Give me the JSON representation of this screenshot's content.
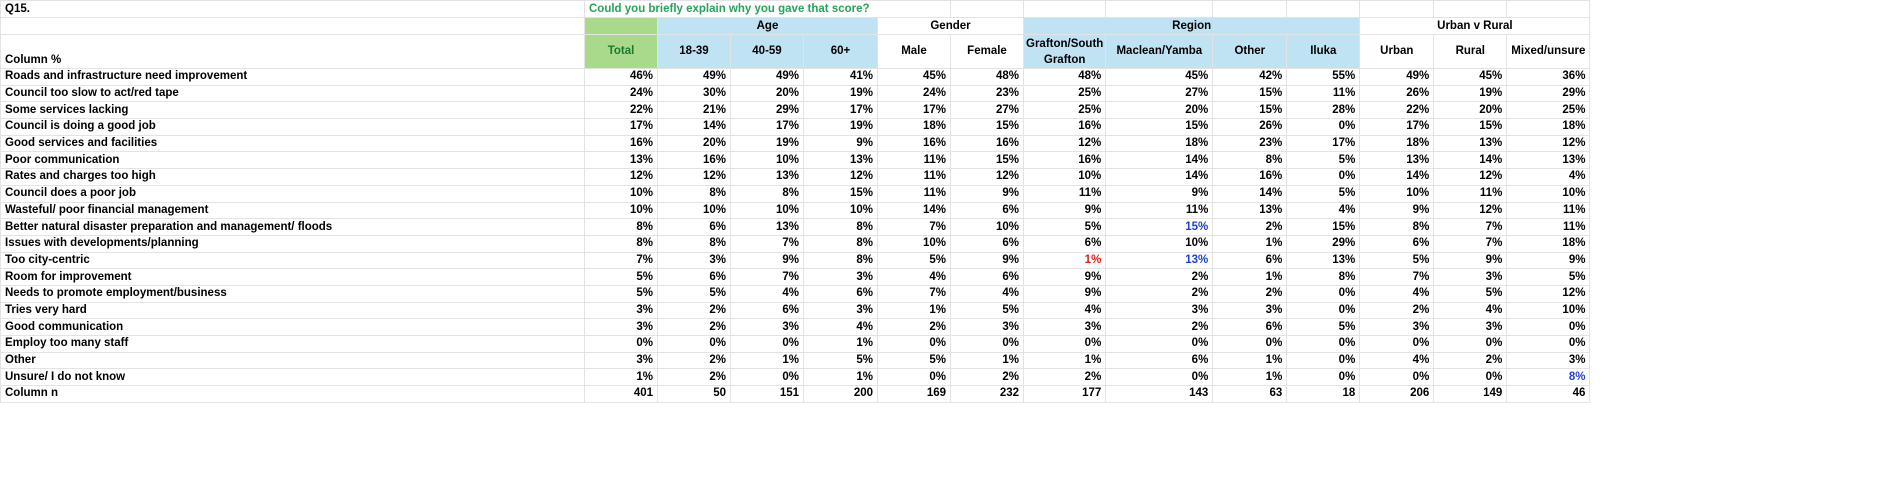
{
  "question_id": "Q15.",
  "question_text": "Could you briefly explain why you gave that score?",
  "column_pct_label": "Column %",
  "groups": {
    "age": "Age",
    "gender": "Gender",
    "region": "Region",
    "urban": "Urban v Rural"
  },
  "columns": {
    "total": "Total",
    "a1839": "18-39",
    "a4059": "40-59",
    "a60": "60+",
    "male": "Male",
    "female": "Female",
    "grafton": "Grafton/South Grafton",
    "maclean": "Maclean/Yamba",
    "other": "Other",
    "iluka": "Iluka",
    "urban": "Urban",
    "rural": "Rural",
    "mixed": "Mixed/unsure"
  },
  "colors": {
    "total_fill": "#a9d98a",
    "group_fill": "#bfe3f3",
    "question_text": "#27a35a",
    "sig_low": "#e0201c",
    "sig_high": "#1f3fd6"
  },
  "rows": [
    {
      "label": "Roads and infrastructure need improvement",
      "v": [
        "46%",
        "49%",
        "49%",
        "41%",
        "45%",
        "48%",
        "48%",
        "45%",
        "42%",
        "55%",
        "49%",
        "45%",
        "36%"
      ]
    },
    {
      "label": "Council too slow to act/red tape",
      "v": [
        "24%",
        "30%",
        "20%",
        "19%",
        "24%",
        "23%",
        "25%",
        "27%",
        "15%",
        "11%",
        "26%",
        "19%",
        "29%"
      ]
    },
    {
      "label": "Some services lacking",
      "v": [
        "22%",
        "21%",
        "29%",
        "17%",
        "17%",
        "27%",
        "25%",
        "20%",
        "15%",
        "28%",
        "22%",
        "20%",
        "25%"
      ]
    },
    {
      "label": "Council is doing a good job",
      "v": [
        "17%",
        "14%",
        "17%",
        "19%",
        "18%",
        "15%",
        "16%",
        "15%",
        "26%",
        "0%",
        "17%",
        "15%",
        "18%"
      ]
    },
    {
      "label": "Good services and facilities",
      "v": [
        "16%",
        "20%",
        "19%",
        "9%",
        "16%",
        "16%",
        "12%",
        "18%",
        "23%",
        "17%",
        "18%",
        "13%",
        "12%"
      ]
    },
    {
      "label": "Poor communication",
      "v": [
        "13%",
        "16%",
        "10%",
        "13%",
        "11%",
        "15%",
        "16%",
        "14%",
        "8%",
        "5%",
        "13%",
        "14%",
        "13%"
      ]
    },
    {
      "label": "Rates and charges too high",
      "v": [
        "12%",
        "12%",
        "13%",
        "12%",
        "11%",
        "12%",
        "10%",
        "14%",
        "16%",
        "0%",
        "14%",
        "12%",
        "4%"
      ]
    },
    {
      "label": "Council does a poor job",
      "v": [
        "10%",
        "8%",
        "8%",
        "15%",
        "11%",
        "9%",
        "11%",
        "9%",
        "14%",
        "5%",
        "10%",
        "11%",
        "10%"
      ]
    },
    {
      "label": "Wasteful/ poor financial management",
      "v": [
        "10%",
        "10%",
        "10%",
        "10%",
        "14%",
        "6%",
        "9%",
        "11%",
        "13%",
        "4%",
        "9%",
        "12%",
        "11%"
      ]
    },
    {
      "label": "Better natural disaster preparation and management/ floods",
      "v": [
        "8%",
        "6%",
        "13%",
        "8%",
        "7%",
        "10%",
        "5%",
        "15%",
        "2%",
        "15%",
        "8%",
        "7%",
        "11%"
      ]
    },
    {
      "label": "Issues with developments/planning",
      "v": [
        "8%",
        "8%",
        "7%",
        "8%",
        "10%",
        "6%",
        "6%",
        "10%",
        "1%",
        "29%",
        "6%",
        "7%",
        "18%"
      ]
    },
    {
      "label": "Too city-centric",
      "v": [
        "7%",
        "3%",
        "9%",
        "8%",
        "5%",
        "9%",
        "1%",
        "13%",
        "6%",
        "13%",
        "5%",
        "9%",
        "9%"
      ]
    },
    {
      "label": "Room for improvement",
      "v": [
        "5%",
        "6%",
        "7%",
        "3%",
        "4%",
        "6%",
        "9%",
        "2%",
        "1%",
        "8%",
        "7%",
        "3%",
        "5%"
      ]
    },
    {
      "label": "Needs to promote employment/business",
      "v": [
        "5%",
        "5%",
        "4%",
        "6%",
        "7%",
        "4%",
        "9%",
        "2%",
        "2%",
        "0%",
        "4%",
        "5%",
        "12%"
      ]
    },
    {
      "label": "Tries very hard",
      "v": [
        "3%",
        "2%",
        "6%",
        "3%",
        "1%",
        "5%",
        "4%",
        "3%",
        "3%",
        "0%",
        "2%",
        "4%",
        "10%"
      ]
    },
    {
      "label": "Good communication",
      "v": [
        "3%",
        "2%",
        "3%",
        "4%",
        "2%",
        "3%",
        "3%",
        "2%",
        "6%",
        "5%",
        "3%",
        "3%",
        "0%"
      ]
    },
    {
      "label": "Employ too many staff",
      "v": [
        "0%",
        "0%",
        "0%",
        "1%",
        "0%",
        "0%",
        "0%",
        "0%",
        "0%",
        "0%",
        "0%",
        "0%",
        "0%"
      ]
    },
    {
      "label": "Other",
      "v": [
        "3%",
        "2%",
        "1%",
        "5%",
        "5%",
        "1%",
        "1%",
        "6%",
        "1%",
        "0%",
        "4%",
        "2%",
        "3%"
      ]
    },
    {
      "label": "Unsure/ I do not know",
      "v": [
        "1%",
        "2%",
        "0%",
        "1%",
        "0%",
        "2%",
        "2%",
        "0%",
        "1%",
        "0%",
        "0%",
        "0%",
        "8%"
      ]
    },
    {
      "label": "Column n",
      "v": [
        "401",
        "50",
        "151",
        "200",
        "169",
        "232",
        "177",
        "143",
        "63",
        "18",
        "206",
        "149",
        "46"
      ]
    }
  ],
  "highlights": [
    {
      "row": 9,
      "col": 7,
      "tone": "sig_high"
    },
    {
      "row": 11,
      "col": 6,
      "tone": "sig_low"
    },
    {
      "row": 11,
      "col": 7,
      "tone": "sig_high"
    },
    {
      "row": 18,
      "col": 12,
      "tone": "sig_high"
    }
  ]
}
